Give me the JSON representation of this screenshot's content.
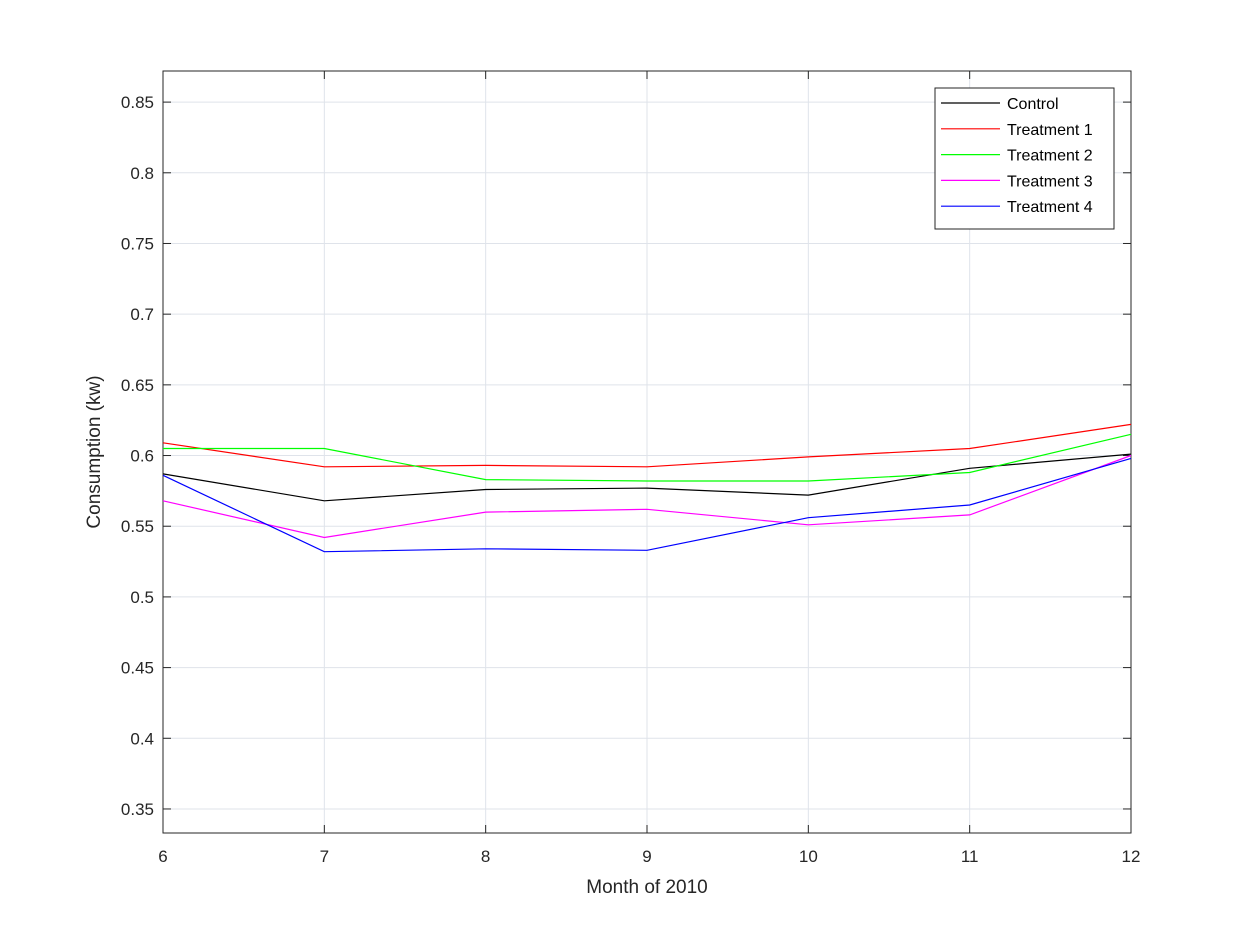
{
  "chart_data": {
    "type": "line",
    "title": "",
    "xlabel": "Month of 2010",
    "ylabel": "Consumption (kw)",
    "xlim": [
      6,
      12
    ],
    "ylim": [
      0.333,
      0.872
    ],
    "x": [
      6,
      7,
      8,
      9,
      10,
      11,
      12
    ],
    "xticks": [
      "6",
      "7",
      "8",
      "9",
      "10",
      "11",
      "12"
    ],
    "yticks": [
      "0.35",
      "0.4",
      "0.45",
      "0.5",
      "0.55",
      "0.6",
      "0.65",
      "0.7",
      "0.75",
      "0.8",
      "0.85"
    ],
    "ytick_values": [
      0.35,
      0.4,
      0.45,
      0.5,
      0.55,
      0.6,
      0.65,
      0.7,
      0.75,
      0.8,
      0.85
    ],
    "grid": true,
    "legend_position": "top-right",
    "series": [
      {
        "name": "Control",
        "color": "#000000",
        "values": [
          0.587,
          0.568,
          0.576,
          0.577,
          0.572,
          0.591,
          0.601
        ]
      },
      {
        "name": "Treatment 1",
        "color": "#ff0000",
        "values": [
          0.609,
          0.592,
          0.593,
          0.592,
          0.599,
          0.605,
          0.622
        ]
      },
      {
        "name": "Treatment 2",
        "color": "#00ff00",
        "values": [
          0.605,
          0.605,
          0.583,
          0.582,
          0.582,
          0.588,
          0.615
        ]
      },
      {
        "name": "Treatment 3",
        "color": "#ff00ff",
        "values": [
          0.568,
          0.542,
          0.56,
          0.562,
          0.551,
          0.558,
          0.6
        ]
      },
      {
        "name": "Treatment 4",
        "color": "#0000ff",
        "values": [
          0.586,
          0.532,
          0.534,
          0.533,
          0.556,
          0.565,
          0.598
        ]
      }
    ]
  }
}
